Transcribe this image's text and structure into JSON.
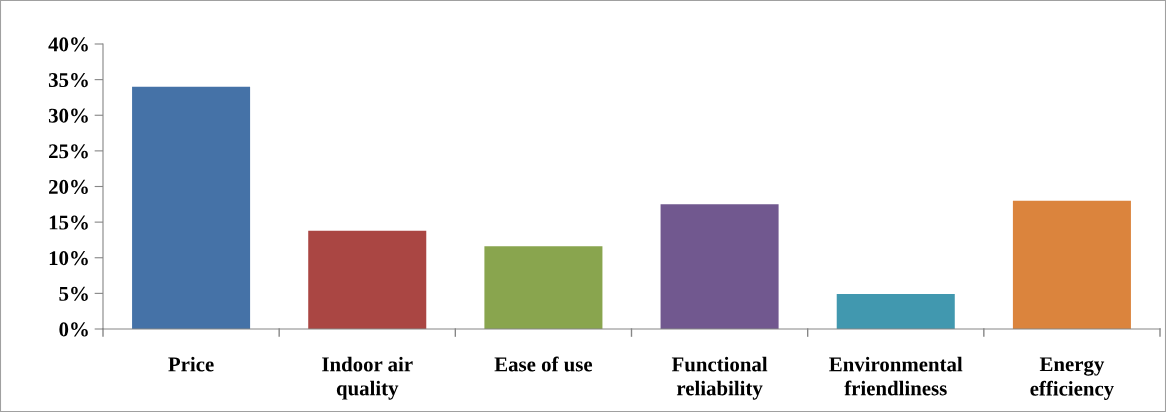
{
  "chart_data": {
    "type": "bar",
    "categories": [
      "Price",
      "Indoor air\nquality",
      "Ease of use",
      "Functional\nreliability",
      "Environmental\nfriendliness",
      "Energy\nefficiency"
    ],
    "values": [
      34,
      13.8,
      11.6,
      17.5,
      4.9,
      18
    ],
    "colors": [
      "#4572a7",
      "#aa4643",
      "#89a54e",
      "#71588f",
      "#4198af",
      "#db843d"
    ],
    "ylim": [
      0,
      40
    ],
    "yticks": [
      {
        "value": 0,
        "label": "0%"
      },
      {
        "value": 5,
        "label": "5%"
      },
      {
        "value": 10,
        "label": "10%"
      },
      {
        "value": 15,
        "label": "15%"
      },
      {
        "value": 20,
        "label": "20%"
      },
      {
        "value": 25,
        "label": "25%"
      },
      {
        "value": 30,
        "label": "30%"
      },
      {
        "value": 35,
        "label": "35%"
      },
      {
        "value": 40,
        "label": "40%"
      }
    ],
    "grid": false,
    "legend": false
  }
}
